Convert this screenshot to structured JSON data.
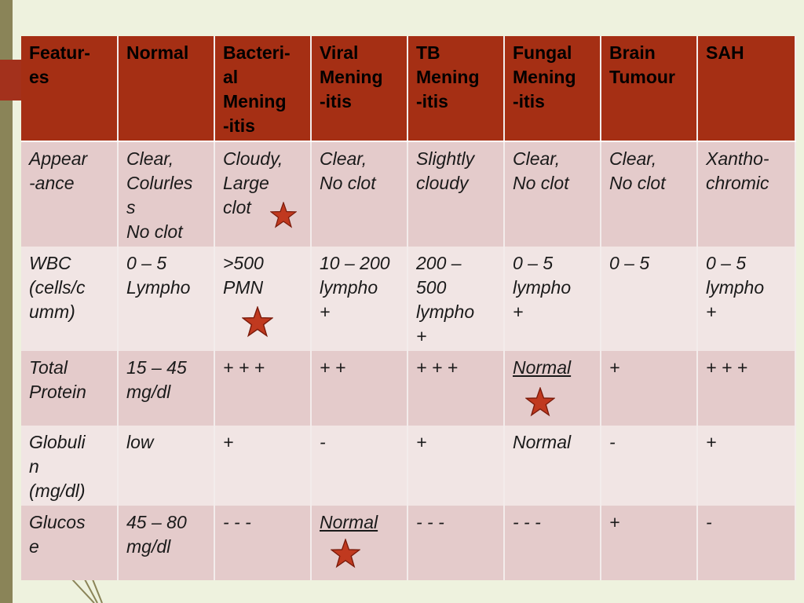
{
  "table": {
    "headers": [
      "Featur-\nes",
      "Normal",
      "Bacteri-\nal\nMening\n-itis",
      "Viral\nMening\n-itis",
      "TB\nMening\n-itis",
      "Fungal\nMening\n-itis",
      "Brain\nTumour",
      "SAH"
    ],
    "rows": [
      {
        "feature": "Appear\n-ance",
        "normal": "Clear,\nColurles\ns\nNo clot",
        "bacterial": "Cloudy,\nLarge\nclot",
        "viral": "Clear,\nNo clot",
        "tb": "Slightly\ncloudy",
        "fungal": "Clear,\nNo clot",
        "tumour": "Clear,\nNo clot",
        "sah": "Xantho-\nchromic"
      },
      {
        "feature": "WBC\n(cells/c\numm)",
        "normal": "0 – 5\nLympho",
        "bacterial": ">500\nPMN",
        "viral": "10 – 200\nlympho\n+",
        "tb": "200 –\n500\nlympho\n+",
        "fungal": "0 – 5\nlympho\n+",
        "tumour": "0 – 5",
        "sah": "0 – 5\nlympho\n+"
      },
      {
        "feature": "Total\nProtein",
        "normal": "15 – 45\nmg/dl",
        "bacterial": "+ + +",
        "viral": "   + +",
        "tb": "+ + +",
        "fungal": "Normal",
        "tumour": "  +",
        "sah": "  + + +"
      },
      {
        "feature": "Globuli\nn\n(mg/dl)",
        "normal": "low",
        "bacterial": "   +",
        "viral": "    -",
        "tb": "  +",
        "fungal": "Normal",
        "tumour": "-",
        "sah": "   +"
      },
      {
        "feature": "Glucos\ne",
        "normal": "45 – 80\nmg/dl",
        "bacterial": "- - -",
        "viral": "Normal",
        "tb": " - - -",
        "fungal": "- - -",
        "tumour": "  +",
        "sah": "   -"
      }
    ]
  },
  "markers": {
    "icon": "star-icon",
    "color": "#c0391f",
    "stroke": "#7a1a0a"
  },
  "colors": {
    "header_bg": "#a52f14",
    "row_dark": "#e4cbcb",
    "row_light": "#f1e5e4",
    "slide_bg": "#eef2de",
    "strip": "#8a8458"
  }
}
